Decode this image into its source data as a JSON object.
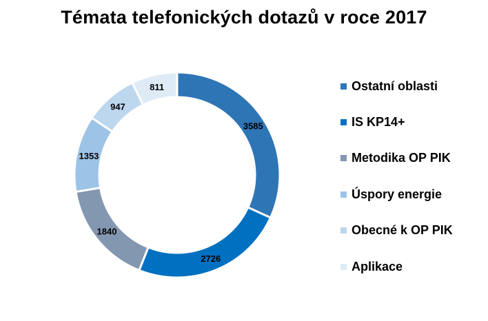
{
  "chart_data": {
    "type": "pie",
    "title": "Témata telefonických dotazů v roce 2017",
    "subtype": "donut",
    "categories": [
      "Ostatní oblasti",
      "IS KP14+",
      "Metodika OP PIK",
      "Úspory energie",
      "Obecné k OP PIK",
      "Aplikace"
    ],
    "values": [
      3585,
      2726,
      1840,
      1353,
      947,
      811
    ],
    "colors": [
      "#2E75B6",
      "#0070C0",
      "#8497B0",
      "#9DC3E6",
      "#BDD7EE",
      "#DEEBF7"
    ],
    "legend_position": "right",
    "data_labels": true
  }
}
